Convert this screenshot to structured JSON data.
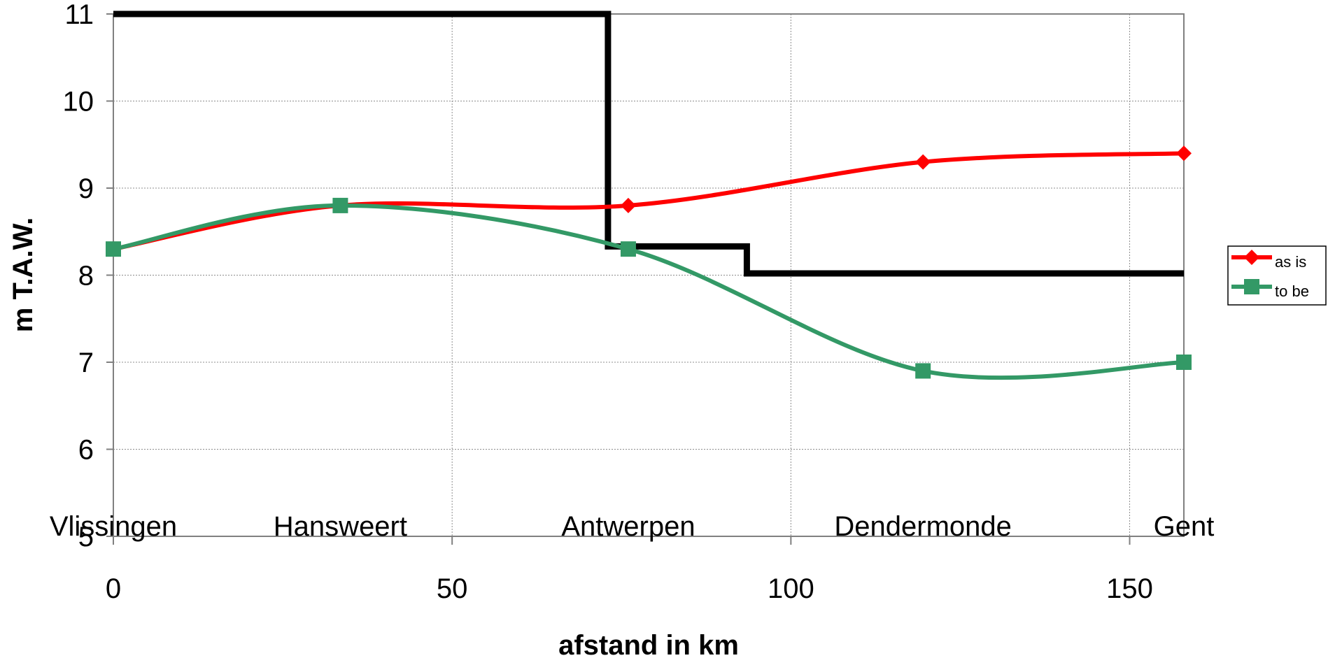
{
  "chart_data": {
    "type": "line",
    "title": "",
    "xlabel": "afstand in km",
    "ylabel": "m T.A.W.",
    "xlim": [
      0,
      158
    ],
    "ylim": [
      5,
      11
    ],
    "x_ticks": [
      "0",
      "50",
      "100",
      "150"
    ],
    "y_ticks": [
      "5",
      "6",
      "7",
      "8",
      "9",
      "10",
      "11"
    ],
    "grid": true,
    "smooth": true,
    "legend_position": "right",
    "locations": [
      {
        "name": "Vlissingen",
        "x": 0
      },
      {
        "name": "Hansweert",
        "x": 33.5
      },
      {
        "name": "Antwerpen",
        "x": 76
      },
      {
        "name": "Dendermonde",
        "x": 119.5
      },
      {
        "name": "Gent",
        "x": 158
      }
    ],
    "series": [
      {
        "name": "as is",
        "color": "#ff0000",
        "marker": "diamond",
        "points": [
          {
            "x": 0,
            "y": 8.3
          },
          {
            "x": 33.5,
            "y": 8.8
          },
          {
            "x": 76,
            "y": 8.8
          },
          {
            "x": 119.5,
            "y": 9.3
          },
          {
            "x": 158,
            "y": 9.4
          }
        ]
      },
      {
        "name": "to be",
        "color": "#339966",
        "marker": "square",
        "points": [
          {
            "x": 0,
            "y": 8.3
          },
          {
            "x": 33.5,
            "y": 8.8
          },
          {
            "x": 76,
            "y": 8.3
          },
          {
            "x": 119.5,
            "y": 6.9
          },
          {
            "x": 158,
            "y": 7.0
          }
        ]
      }
    ],
    "step_line": {
      "color": "#000000",
      "points": [
        {
          "x": 0,
          "y": 11
        },
        {
          "x": 73,
          "y": 11
        },
        {
          "x": 73,
          "y": 8.33
        },
        {
          "x": 93.5,
          "y": 8.33
        },
        {
          "x": 93.5,
          "y": 8.02
        },
        {
          "x": 158,
          "y": 8.02
        }
      ]
    }
  }
}
